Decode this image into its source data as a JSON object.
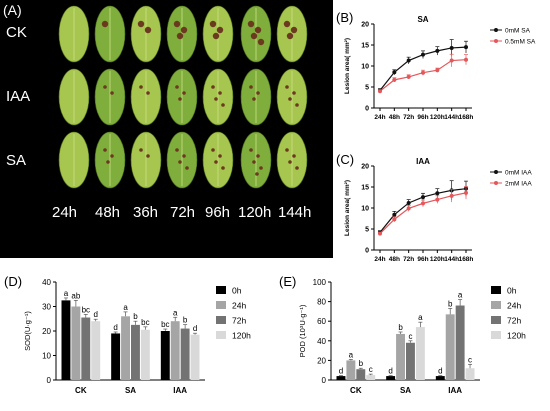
{
  "panelA": {
    "label": "(A)",
    "rows": [
      "CK",
      "IAA",
      "SA"
    ],
    "times": [
      "24h",
      "48h",
      "36h",
      "72h",
      "96h",
      "120h",
      "144h"
    ]
  },
  "colors": {
    "black": "#111111",
    "red": "#e4575a",
    "bar0": "#000000",
    "bar1": "#a5a5a5",
    "bar2": "#737373",
    "bar3": "#d9d9d9",
    "leaf": "#7fae3c",
    "leafLight": "#a7c64f"
  },
  "chart_data": [
    {
      "type": "line",
      "panel": "(B)",
      "title": "SA",
      "ylabel": "Lesion area( mm²)",
      "categories": [
        "24h",
        "48h",
        "72h",
        "96h",
        "120h",
        "144h",
        "168h"
      ],
      "ylim": [
        0,
        20
      ],
      "yticks": [
        0,
        5,
        10,
        15,
        20
      ],
      "legend": "top-right",
      "series": [
        {
          "name": "0mM SA",
          "values": [
            4.2,
            8.5,
            11.3,
            12.7,
            13.6,
            14.3,
            14.5
          ],
          "err": [
            0.4,
            0.6,
            0.8,
            0.9,
            1.0,
            2.0,
            1.4
          ]
        },
        {
          "name": "0.5mM SA",
          "values": [
            4.0,
            6.7,
            7.4,
            8.4,
            9.0,
            11.3,
            11.5
          ],
          "err": [
            0.3,
            0.5,
            0.5,
            0.6,
            0.5,
            1.5,
            1.2
          ]
        }
      ]
    },
    {
      "type": "line",
      "panel": "(C)",
      "title": "IAA",
      "ylabel": "Lesion area( mm²)",
      "categories": [
        "24h",
        "48h",
        "72h",
        "96h",
        "120h",
        "144h",
        "168h"
      ],
      "ylim": [
        0,
        20
      ],
      "yticks": [
        0,
        5,
        10,
        15,
        20
      ],
      "legend": "top-right",
      "series": [
        {
          "name": "0mM IAA",
          "values": [
            4.2,
            8.4,
            11.2,
            12.6,
            13.5,
            14.2,
            14.6
          ],
          "err": [
            0.4,
            0.8,
            0.8,
            0.9,
            1.1,
            2.3,
            1.8
          ]
        },
        {
          "name": "2mM IAA",
          "values": [
            3.9,
            7.3,
            9.9,
            11.1,
            12.0,
            12.9,
            13.6
          ],
          "err": [
            0.3,
            0.6,
            0.7,
            0.8,
            0.9,
            1.5,
            1.5
          ]
        }
      ]
    },
    {
      "type": "bar",
      "panel": "(D)",
      "ylabel": "SOD(U·g⁻¹)",
      "categories": [
        "CK",
        "SA",
        "IAA"
      ],
      "ylim": [
        0,
        40
      ],
      "yticks": [
        0,
        10,
        20,
        30,
        40
      ],
      "legend": "right",
      "series": [
        {
          "name": "0h",
          "values": [
            32.5,
            19.0,
            20.0
          ],
          "err": [
            1.0,
            0.6,
            0.8
          ],
          "letters": [
            "a",
            "d",
            "bc"
          ]
        },
        {
          "name": "24h",
          "values": [
            30.0,
            26.0,
            24.0
          ],
          "err": [
            2.5,
            1.8,
            1.6
          ],
          "letters": [
            "ab",
            "a",
            "a"
          ]
        },
        {
          "name": "72h",
          "values": [
            25.5,
            22.5,
            21.0
          ],
          "err": [
            1.3,
            1.5,
            1.6
          ],
          "letters": [
            "bc",
            "b",
            "b"
          ]
        },
        {
          "name": "120h",
          "values": [
            24.0,
            20.5,
            18.5
          ],
          "err": [
            0.8,
            1.2,
            0.6
          ],
          "letters": [
            "d",
            "bc",
            "d"
          ]
        }
      ]
    },
    {
      "type": "bar",
      "panel": "(E)",
      "ylabel": "POD (10³U·g⁻¹)",
      "categories": [
        "CK",
        "SA",
        "IAA"
      ],
      "ylim": [
        0,
        100
      ],
      "yticks": [
        0,
        20,
        40,
        60,
        80,
        100
      ],
      "legend": "right",
      "series": [
        {
          "name": "0h",
          "values": [
            4.0,
            4.0,
            4.0
          ],
          "err": [
            0.5,
            0.5,
            0.5
          ],
          "letters": [
            "d",
            "d",
            "d"
          ]
        },
        {
          "name": "24h",
          "values": [
            20.0,
            47.0,
            67.0
          ],
          "err": [
            1.0,
            2.0,
            6.0
          ],
          "letters": [
            "a",
            "b",
            "b"
          ]
        },
        {
          "name": "72h",
          "values": [
            11.0,
            38.0,
            76.0
          ],
          "err": [
            1.0,
            2.0,
            6.0
          ],
          "letters": [
            "b",
            "c",
            "a"
          ]
        },
        {
          "name": "120h",
          "values": [
            5.0,
            54.0,
            12.0
          ],
          "err": [
            1.0,
            5.0,
            4.0
          ],
          "letters": [
            "c",
            "a",
            "c"
          ]
        }
      ]
    }
  ]
}
